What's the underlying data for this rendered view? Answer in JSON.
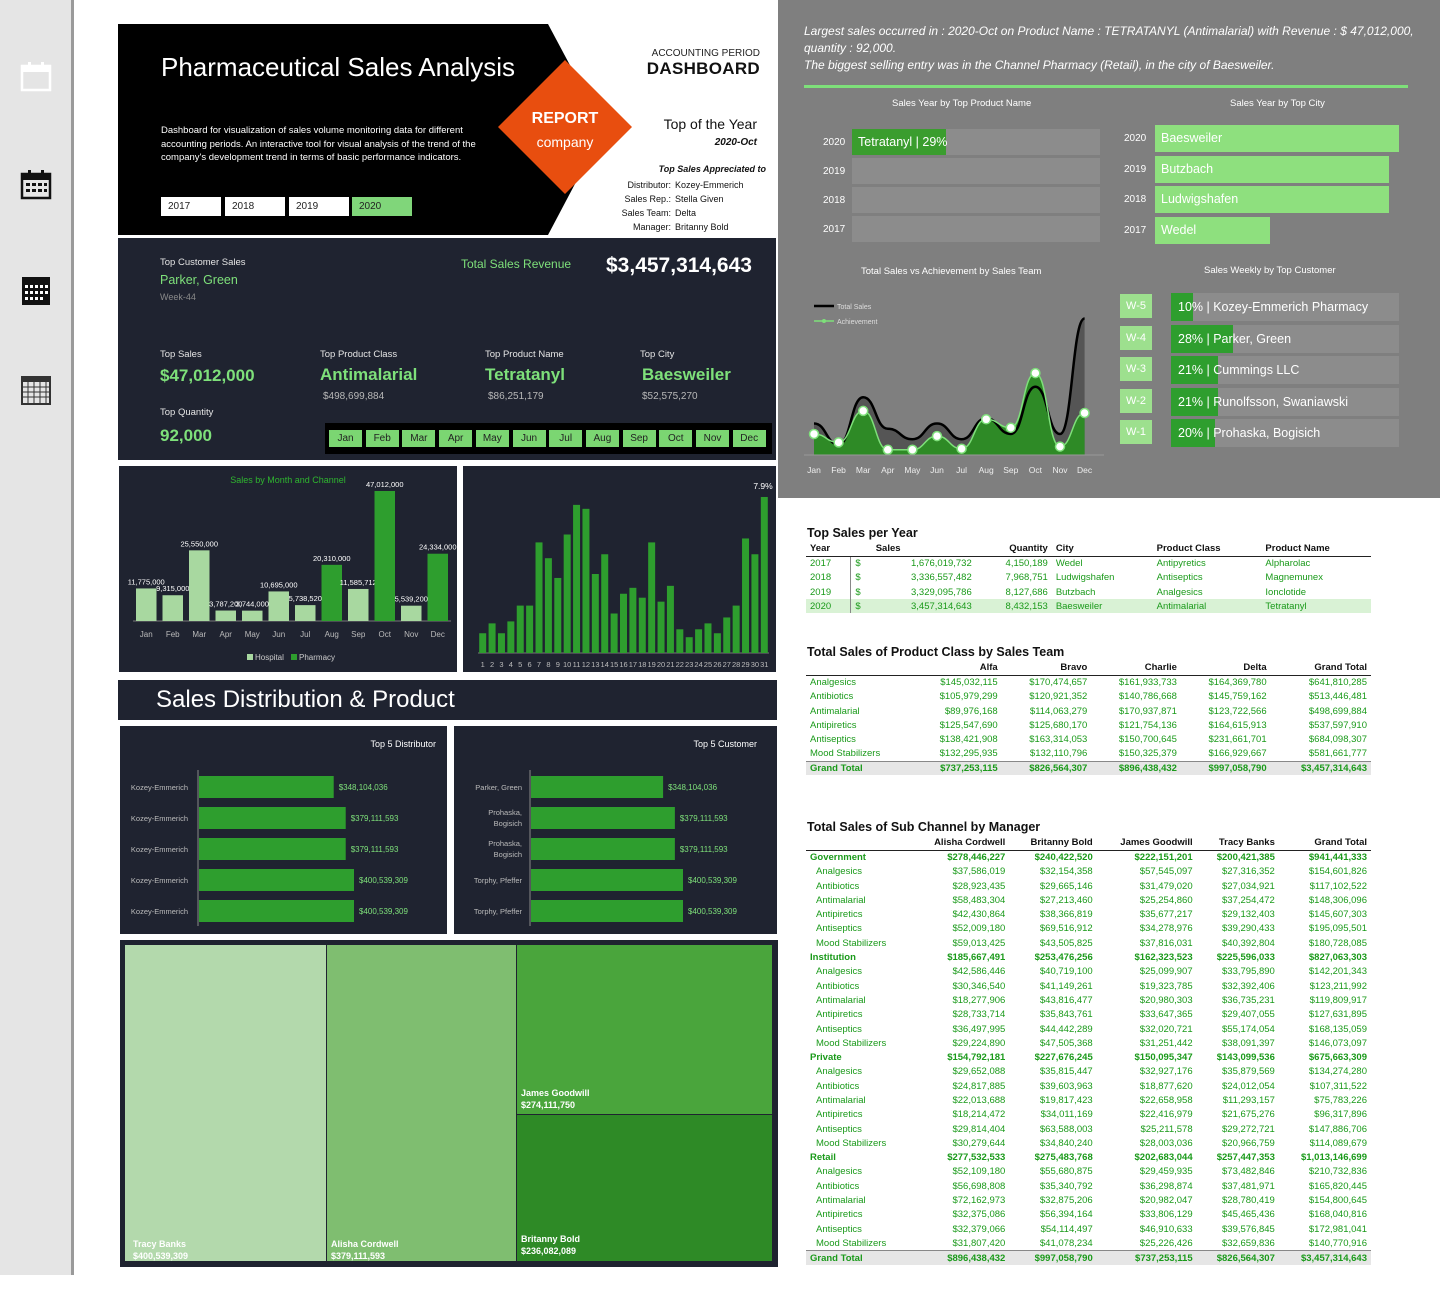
{
  "header": {
    "title": "Pharmaceutical Sales Analysis",
    "description": "Dashboard for visualization of sales volume monitoring data for different accounting periods. An interactive tool for visual analysis of the trend of the company's development trend in terms of basic performance indicators.",
    "years": [
      "2017",
      "2018",
      "2019",
      "2020"
    ],
    "selected_year": "2020",
    "report_line1": "REPORT",
    "report_line2": "company",
    "accounting_period": "ACCOUNTING PERIOD",
    "dashboard": "DASHBOARD",
    "top_of_year": "Top of the Year",
    "top_period": "2020-Oct",
    "top_sales_appreciated": "Top Sales Appreciated to",
    "people": [
      {
        "role": "Distributor:",
        "name": "Kozey-Emmerich"
      },
      {
        "role": "Sales Rep.:",
        "name": "Stella Given"
      },
      {
        "role": "Sales Team:",
        "name": "Delta"
      },
      {
        "role": "Manager:",
        "name": "Britanny Bold"
      }
    ]
  },
  "kpis": {
    "top_customer_label": "Top Customer Sales",
    "top_customer": "Parker, Green",
    "top_customer_week": "Week-44",
    "total_revenue_label": "Total  Sales Revenue",
    "total_revenue": "$3,457,314,643",
    "top_sales_label": "Top Sales",
    "top_sales": "$47,012,000",
    "top_product_class_label": "Top Product  Class",
    "top_product_class": "Antimalarial",
    "top_product_class_value": "$498,699,884",
    "top_product_name_label": "Top Product Name",
    "top_product_name": "Tetratanyl",
    "top_product_name_value": "$86,251,179",
    "top_city_label": "Top City",
    "top_city": "Baesweiler",
    "top_city_value": "$52,575,270",
    "top_quantity_label": "Top Quantity",
    "top_quantity": "92,000",
    "months": [
      "Jan",
      "Feb",
      "Mar",
      "Apr",
      "May",
      "Jun",
      "Jul",
      "Aug",
      "Sep",
      "Oct",
      "Nov",
      "Dec"
    ]
  },
  "insights": {
    "line1": "Largest sales occurred in : 2020-Oct on Product Name : TETRATANYL (Antimalarial) with Revenue : $  47,012,000,",
    "line2": "quantity : 92,000.",
    "line3": "The biggest selling entry was in the Channel Pharmacy (Retail), in the city of Baesweiler."
  },
  "charts_right": {
    "product_title": "Sales Year by Top Product Name",
    "product_years": [
      "2020",
      "2019",
      "2018",
      "2017"
    ],
    "product_bar_label": "Tetratanyl | 29%",
    "city_title": "Sales Year by Top City",
    "cities": [
      {
        "year": "2020",
        "name": "Baesweiler"
      },
      {
        "year": "2019",
        "name": "Butzbach"
      },
      {
        "year": "2018",
        "name": "Ludwigshafen"
      },
      {
        "year": "2017",
        "name": "Wedel"
      }
    ],
    "team_title": "Total Sales vs Achievement by Sales Team",
    "legend_total": "Total Sales",
    "legend_ach": "Achievement",
    "weekly_title": "Sales Weekly by Top Customer",
    "weekly": [
      {
        "week": "W-5",
        "label": "10% | Kozey-Emmerich Pharmacy"
      },
      {
        "week": "W-4",
        "label": "28% | Parker, Green"
      },
      {
        "week": "W-3",
        "label": "21% | Cummings LLC"
      },
      {
        "week": "W-2",
        "label": "21% | Runolfsson, Swaniawski"
      },
      {
        "week": "W-1",
        "label": "20% | Prohaska, Bogisich"
      }
    ]
  },
  "distribution": {
    "title": "Sales Distribution & Product",
    "distributor_title": "Top 5 Distributor",
    "customer_title": "Top 5 Customer"
  },
  "top_sales_per_year": {
    "title": "Top Sales per Year",
    "headers": [
      "Year",
      "Sales",
      "Quantity",
      "City",
      "Product Class",
      "Product Name"
    ],
    "rows": [
      [
        "2017",
        "$",
        "1,676,019,732",
        "4,150,189",
        "Wedel",
        "Antipyretics",
        "Alpharolac"
      ],
      [
        "2018",
        "$",
        "3,336,557,482",
        "7,968,751",
        "Ludwigshafen",
        "Antiseptics",
        "Magnemunex"
      ],
      [
        "2019",
        "$",
        "3,329,095,786",
        "8,127,686",
        "Butzbach",
        "Analgesics",
        "Ionclotide"
      ],
      [
        "2020",
        "$",
        "3,457,314,643",
        "8,432,153",
        "Baesweiler",
        "Antimalarial",
        "Tetratanyl"
      ]
    ]
  },
  "class_by_team": {
    "title": "Total Sales of Product Class by Sales Team",
    "headers": [
      "",
      "Alfa",
      "Bravo",
      "Charlie",
      "Delta",
      "Grand Total"
    ],
    "rows": [
      [
        "Analgesics",
        "$145,032,115",
        "$170,474,657",
        "$161,933,733",
        "$164,369,780",
        "$641,810,285"
      ],
      [
        "Antibiotics",
        "$105,979,299",
        "$120,921,352",
        "$140,786,668",
        "$145,759,162",
        "$513,446,481"
      ],
      [
        "Antimalarial",
        "$89,976,168",
        "$114,063,279",
        "$170,937,871",
        "$123,722,566",
        "$498,699,884"
      ],
      [
        "Antipiretics",
        "$125,547,690",
        "$125,680,170",
        "$121,754,136",
        "$164,615,913",
        "$537,597,910"
      ],
      [
        "Antiseptics",
        "$138,421,908",
        "$163,314,053",
        "$150,700,645",
        "$231,661,701",
        "$684,098,307"
      ],
      [
        "Mood Stabilizers",
        "$132,295,935",
        "$132,110,796",
        "$150,325,379",
        "$166,929,667",
        "$581,661,777"
      ]
    ],
    "total": [
      "Grand Total",
      "$737,253,115",
      "$826,564,307",
      "$896,438,432",
      "$997,058,790",
      "$3,457,314,643"
    ]
  },
  "channel_by_manager": {
    "title": "Total Sales of Sub Channel by Manager",
    "headers": [
      "",
      "Alisha Cordwell",
      "Britanny Bold",
      "James Goodwill",
      "Tracy Banks",
      "Grand Total"
    ],
    "groups": [
      {
        "name": "Government",
        "values": [
          "$278,446,227",
          "$240,422,520",
          "$222,151,201",
          "$200,421,385",
          "$941,441,333"
        ],
        "rows": [
          [
            "Analgesics",
            "$37,586,019",
            "$32,154,358",
            "$57,545,097",
            "$27,316,352",
            "$154,601,826"
          ],
          [
            "Antibiotics",
            "$28,923,435",
            "$29,665,146",
            "$31,479,020",
            "$27,034,921",
            "$117,102,522"
          ],
          [
            "Antimalarial",
            "$58,483,304",
            "$27,213,460",
            "$25,254,860",
            "$37,254,472",
            "$148,306,096"
          ],
          [
            "Antipiretics",
            "$42,430,864",
            "$38,366,819",
            "$35,677,217",
            "$29,132,403",
            "$145,607,303"
          ],
          [
            "Antiseptics",
            "$52,009,180",
            "$69,516,912",
            "$34,278,976",
            "$39,290,433",
            "$195,095,501"
          ],
          [
            "Mood Stabilizers",
            "$59,013,425",
            "$43,505,825",
            "$37,816,031",
            "$40,392,804",
            "$180,728,085"
          ]
        ]
      },
      {
        "name": "Institution",
        "values": [
          "$185,667,491",
          "$253,476,256",
          "$162,323,523",
          "$225,596,033",
          "$827,063,303"
        ],
        "rows": [
          [
            "Analgesics",
            "$42,586,446",
            "$40,719,100",
            "$25,099,907",
            "$33,795,890",
            "$142,201,343"
          ],
          [
            "Antibiotics",
            "$30,346,540",
            "$41,149,261",
            "$19,323,785",
            "$32,392,406",
            "$123,211,992"
          ],
          [
            "Antimalarial",
            "$18,277,906",
            "$43,816,477",
            "$20,980,303",
            "$36,735,231",
            "$119,809,917"
          ],
          [
            "Antipiretics",
            "$28,733,714",
            "$35,843,761",
            "$33,647,365",
            "$29,407,055",
            "$127,631,895"
          ],
          [
            "Antiseptics",
            "$36,497,995",
            "$44,442,289",
            "$32,020,721",
            "$55,174,054",
            "$168,135,059"
          ],
          [
            "Mood Stabilizers",
            "$29,224,890",
            "$47,505,368",
            "$31,251,442",
            "$38,091,397",
            "$146,073,097"
          ]
        ]
      },
      {
        "name": "Private",
        "values": [
          "$154,792,181",
          "$227,676,245",
          "$150,095,347",
          "$143,099,536",
          "$675,663,309"
        ],
        "rows": [
          [
            "Analgesics",
            "$29,652,088",
            "$35,815,447",
            "$32,927,176",
            "$35,879,569",
            "$134,274,280"
          ],
          [
            "Antibiotics",
            "$24,817,885",
            "$39,603,963",
            "$18,877,620",
            "$24,012,054",
            "$107,311,522"
          ],
          [
            "Antimalarial",
            "$22,013,688",
            "$19,817,423",
            "$22,658,958",
            "$11,293,157",
            "$75,783,226"
          ],
          [
            "Antipiretics",
            "$18,214,472",
            "$34,011,169",
            "$22,416,979",
            "$21,675,276",
            "$96,317,896"
          ],
          [
            "Antiseptics",
            "$29,814,404",
            "$63,588,003",
            "$25,211,578",
            "$29,272,721",
            "$147,886,706"
          ],
          [
            "Mood Stabilizers",
            "$30,279,644",
            "$34,840,240",
            "$28,003,036",
            "$20,966,759",
            "$114,089,679"
          ]
        ]
      },
      {
        "name": "Retail",
        "values": [
          "$277,532,533",
          "$275,483,768",
          "$202,683,044",
          "$257,447,353",
          "$1,013,146,699"
        ],
        "rows": [
          [
            "Analgesics",
            "$52,109,180",
            "$55,680,875",
            "$29,459,935",
            "$73,482,846",
            "$210,732,836"
          ],
          [
            "Antibiotics",
            "$56,698,808",
            "$35,340,792",
            "$36,298,874",
            "$37,481,971",
            "$165,820,445"
          ],
          [
            "Antimalarial",
            "$72,162,973",
            "$32,875,206",
            "$20,982,047",
            "$28,780,419",
            "$154,800,645"
          ],
          [
            "Antipiretics",
            "$32,375,086",
            "$56,394,164",
            "$33,806,129",
            "$45,465,436",
            "$168,040,816"
          ],
          [
            "Antiseptics",
            "$32,379,066",
            "$54,114,497",
            "$46,910,633",
            "$39,576,845",
            "$172,981,041"
          ],
          [
            "Mood Stabilizers",
            "$31,807,420",
            "$41,078,234",
            "$25,226,426",
            "$32,659,836",
            "$140,770,916"
          ]
        ]
      }
    ],
    "total": [
      "Grand Total",
      "$896,438,432",
      "$997,058,790",
      "$737,253,115",
      "$826,564,307",
      "$3,457,314,643"
    ]
  },
  "treemap": [
    {
      "name": "Tracy Banks",
      "value": "$400,539,309"
    },
    {
      "name": "Alisha Cordwell",
      "value": "$379,111,593"
    },
    {
      "name": "James Goodwill",
      "value": "$274,111,750"
    },
    {
      "name": "Britanny Bold",
      "value": "$236,082,089"
    }
  ],
  "chart_data": [
    {
      "type": "bar",
      "title": "Sales by Month and Channel",
      "categories": [
        "Jan",
        "Feb",
        "Mar",
        "Apr",
        "May",
        "Jun",
        "Jul",
        "Aug",
        "Sep",
        "Oct",
        "Nov",
        "Dec"
      ],
      "series": [
        {
          "name": "Hospital",
          "values": [
            11775000,
            9315000,
            25550000,
            3787200,
            3744000,
            10695000,
            5738520,
            0,
            11585712,
            0,
            5539200,
            0
          ],
          "color": "#a8d8a0"
        },
        {
          "name": "Pharmacy",
          "values": [
            0,
            0,
            0,
            0,
            0,
            0,
            0,
            20310000,
            0,
            47012000,
            0,
            24334000
          ],
          "color": "#2e9e2e"
        }
      ],
      "labels": [
        "11,775,000",
        "9,315,000",
        "25,550,000",
        "3,787,200",
        "3,744,000",
        "10,695,000",
        "5,738,520",
        "20,310,000",
        "11,585,712",
        "47,012,000",
        "5,539,200",
        "24,334,000"
      ]
    },
    {
      "type": "bar",
      "title": "",
      "categories": [
        "1",
        "2",
        "3",
        "4",
        "5",
        "6",
        "7",
        "8",
        "9",
        "10",
        "11",
        "12",
        "13",
        "14",
        "15",
        "16",
        "17",
        "18",
        "19",
        "20",
        "21",
        "22",
        "23",
        "24",
        "25",
        "26",
        "27",
        "28",
        "29",
        "30",
        "31"
      ],
      "values": [
        1.0,
        1.5,
        1.0,
        1.6,
        2.4,
        2.4,
        5.6,
        4.8,
        3.8,
        6.0,
        7.5,
        7.3,
        4.0,
        5.0,
        2.0,
        3.0,
        3.3,
        2.8,
        5.6,
        2.6,
        3.4,
        1.2,
        0.8,
        1.2,
        1.5,
        1.0,
        1.8,
        2.4,
        5.8,
        5.0,
        7.9
      ],
      "top_label": "7.9%",
      "ylim": [
        0,
        8
      ]
    },
    {
      "type": "line",
      "title": "Total Sales vs Achievement by Sales Team",
      "categories": [
        "Jan",
        "Feb",
        "Mar",
        "Apr",
        "May",
        "Jun",
        "Jul",
        "Aug",
        "Sep",
        "Oct",
        "Nov",
        "Dec"
      ],
      "series": [
        {
          "name": "Total Sales",
          "values": [
            3,
            1,
            5.5,
            2.5,
            1.5,
            3,
            1.5,
            3.5,
            2,
            6.5,
            2,
            13
          ]
        },
        {
          "name": "Achievement",
          "values": [
            2,
            1.2,
            4.2,
            0.5,
            0.5,
            1.8,
            0.6,
            3.4,
            2.6,
            7.8,
            0.8,
            4
          ]
        }
      ]
    },
    {
      "type": "bar",
      "title": "Top 5 Distributor",
      "categories": [
        "Kozey-Emmerich",
        "Kozey-Emmerich",
        "Kozey-Emmerich",
        "Kozey-Emmerich",
        "Kozey-Emmerich"
      ],
      "values": [
        348104036,
        379111593,
        379111593,
        400539309,
        400539309
      ],
      "labels": [
        "$348,104,036",
        "$379,111,593",
        "$379,111,593",
        "$400,539,309",
        "$400,539,309"
      ]
    },
    {
      "type": "bar",
      "title": "Top 5 Customer",
      "categories": [
        "Parker, Green",
        "Prohaska, Bogisich",
        "Prohaska, Bogisich",
        "Torphy, Pfeffer",
        "Torphy, Pfeffer"
      ],
      "values": [
        348104036,
        379111593,
        379111593,
        400539309,
        400539309
      ],
      "labels": [
        "$348,104,036",
        "$379,111,593",
        "$379,111,593",
        "$400,539,309",
        "$400,539,309"
      ]
    },
    {
      "type": "bar",
      "title": "Sales Year by Top Product Name",
      "categories": [
        "2020",
        "2019",
        "2018",
        "2017"
      ],
      "values": [
        29,
        0,
        0,
        0
      ]
    },
    {
      "type": "bar",
      "title": "Sales Weekly by Top Customer",
      "categories": [
        "W-5",
        "W-4",
        "W-3",
        "W-2",
        "W-1"
      ],
      "values": [
        10,
        28,
        21,
        21,
        20
      ]
    }
  ],
  "colors": {
    "accent": "#7ee07a",
    "orange": "#e84e0f",
    "dark": "#1f2330",
    "gray": "#7f7f7f"
  }
}
